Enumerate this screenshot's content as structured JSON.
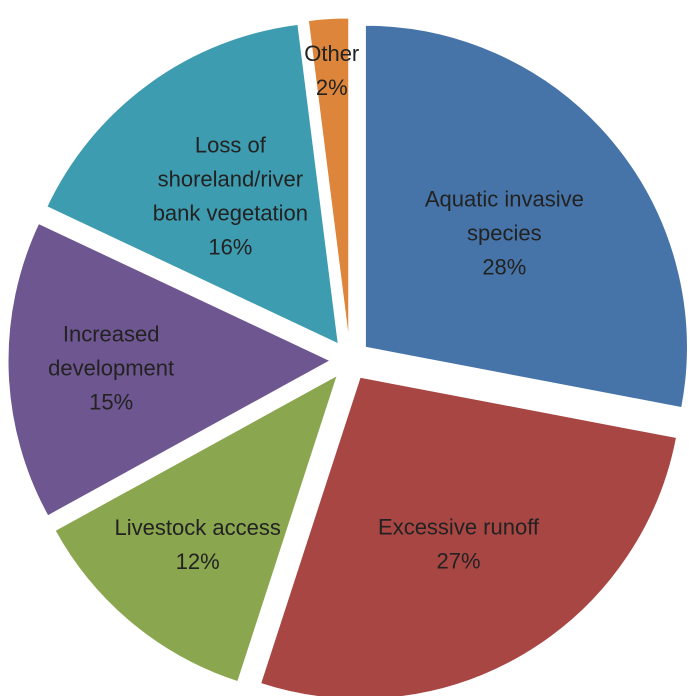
{
  "chart_data": {
    "type": "pie",
    "title": "",
    "legend": "none",
    "slices": [
      {
        "label": "Aquatic invasive species",
        "percent_text": "28%",
        "value": 28,
        "color": "#4674a8"
      },
      {
        "label": "Excessive runoff",
        "percent_text": "27%",
        "value": 27,
        "color": "#a84643"
      },
      {
        "label": "Livestock access",
        "percent_text": "12%",
        "value": 12,
        "color": "#8aa64e"
      },
      {
        "label": "Increased development",
        "percent_text": "15%",
        "value": 15,
        "color": "#6e5690"
      },
      {
        "label": "Loss of shoreland/river bank vegetation",
        "percent_text": "16%",
        "value": 16,
        "color": "#3e9cb0"
      },
      {
        "label": "Other",
        "percent_text": "2%",
        "value": 2,
        "color": "#dd853a"
      }
    ]
  }
}
